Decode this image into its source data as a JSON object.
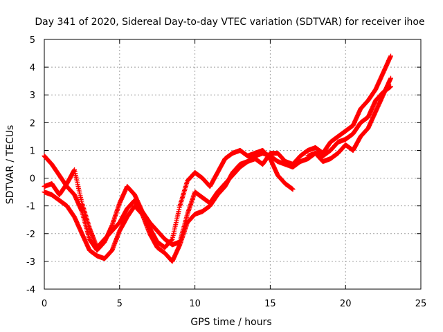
{
  "chart_data": {
    "type": "scatter",
    "title": "Day 341 of 2020, Sidereal Day-to-day VTEC variation (SDTVAR) for receiver ihoe",
    "xlabel": "GPS time / hours",
    "ylabel": "SDTVAR / TECUs",
    "xlim": [
      0,
      25
    ],
    "ylim": [
      -4,
      5
    ],
    "xticks": [
      0,
      5,
      10,
      15,
      20,
      25
    ],
    "yticks": [
      -4,
      -3,
      -2,
      -1,
      0,
      1,
      2,
      3,
      4,
      5
    ],
    "grid": true,
    "legend": "none",
    "marker": "+",
    "series": [
      {
        "name": "track-1",
        "color": "#ff0000",
        "x": [
          0,
          0.5,
          1.0,
          1.5,
          2.0,
          2.5,
          3.0,
          3.5,
          4.0,
          4.5,
          5.0,
          5.5,
          6.0,
          6.5,
          7.0,
          7.5,
          8.0,
          8.5,
          9.0,
          9.5,
          10.0,
          10.5,
          11.0,
          11.5,
          12.0,
          12.5,
          13.0,
          13.5,
          14.0,
          14.5,
          15.0,
          15.5,
          16.0,
          16.5
        ],
        "y": [
          0.8,
          0.5,
          0.1,
          -0.3,
          -0.6,
          -1.2,
          -2.2,
          -2.6,
          -2.3,
          -1.7,
          -0.9,
          -0.3,
          -0.6,
          -1.2,
          -1.8,
          -2.3,
          -2.5,
          -2.2,
          -1.0,
          -0.1,
          0.2,
          0.0,
          -0.3,
          0.2,
          0.7,
          0.9,
          1.0,
          0.8,
          0.9,
          1.0,
          0.7,
          0.1,
          -0.2,
          -0.4
        ]
      },
      {
        "name": "track-2",
        "color": "#ff0000",
        "x": [
          0,
          0.5,
          1.0,
          1.5,
          2.0,
          2.5,
          3.0,
          3.5,
          4.0,
          4.5,
          5.0,
          5.5,
          6.0,
          6.5,
          7.0,
          7.5,
          8.0,
          8.5,
          9.0,
          9.5,
          10.0,
          10.5,
          11.0,
          11.5,
          12.0,
          12.5,
          13.0,
          13.5,
          14.0,
          14.5,
          15.0,
          15.5,
          16.0,
          16.5,
          17.0,
          17.5,
          18.0,
          18.5,
          19.0,
          19.5,
          20.0,
          20.5,
          21.0,
          21.5,
          22.0,
          22.5,
          23.0
        ],
        "y": [
          -0.5,
          -0.6,
          -0.8,
          -1.0,
          -1.4,
          -2.0,
          -2.6,
          -2.8,
          -2.9,
          -2.6,
          -1.9,
          -1.4,
          -1.0,
          -1.3,
          -2.0,
          -2.5,
          -2.7,
          -3.0,
          -2.4,
          -1.6,
          -1.3,
          -1.2,
          -1.0,
          -0.6,
          -0.3,
          0.2,
          0.5,
          0.6,
          0.8,
          0.9,
          0.8,
          0.6,
          0.5,
          0.4,
          0.6,
          0.7,
          0.9,
          0.8,
          1.0,
          1.3,
          1.4,
          1.6,
          2.0,
          2.2,
          2.8,
          3.1,
          3.3
        ]
      },
      {
        "name": "track-3",
        "color": "#ff0000",
        "x": [
          0,
          0.5,
          1.0,
          1.5,
          2.0,
          2.5,
          3.0,
          3.5,
          4.0,
          4.5,
          5.0,
          5.5,
          6.0,
          6.5,
          7.0,
          7.5,
          8.0,
          8.5,
          9.0,
          9.5,
          10.0,
          10.5,
          11.0,
          11.5,
          12.0,
          12.5,
          13.0,
          13.5,
          14.0,
          14.5,
          15.0,
          15.5,
          16.0,
          16.5,
          17.0,
          17.5,
          18.0,
          18.5,
          19.0,
          19.5,
          20.0,
          20.5,
          21.0,
          21.5,
          22.0,
          22.5,
          23.0
        ],
        "y": [
          -0.3,
          -0.2,
          -0.6,
          -0.2,
          0.3,
          -0.9,
          -1.8,
          -2.5,
          -2.2,
          -1.9,
          -1.6,
          -1.1,
          -0.8,
          -1.2,
          -1.6,
          -1.9,
          -2.2,
          -2.4,
          -2.3,
          -1.3,
          -0.5,
          -0.7,
          -0.9,
          -0.5,
          -0.2,
          0.1,
          0.4,
          0.6,
          0.7,
          0.5,
          0.9,
          0.9,
          0.6,
          0.5,
          0.8,
          1.0,
          1.1,
          0.9,
          1.3,
          1.5,
          1.7,
          1.9,
          2.5,
          2.8,
          3.2,
          3.8,
          4.4
        ]
      },
      {
        "name": "track-4",
        "color": "#ff0000",
        "x": [
          17.5,
          18.0,
          18.5,
          19.0,
          19.5,
          20.0,
          20.5,
          21.0,
          21.5,
          22.0,
          22.5,
          23.0
        ],
        "y": [
          0.8,
          0.9,
          0.6,
          0.7,
          0.9,
          1.2,
          1.0,
          1.5,
          1.8,
          2.4,
          3.0,
          3.6
        ]
      }
    ]
  }
}
